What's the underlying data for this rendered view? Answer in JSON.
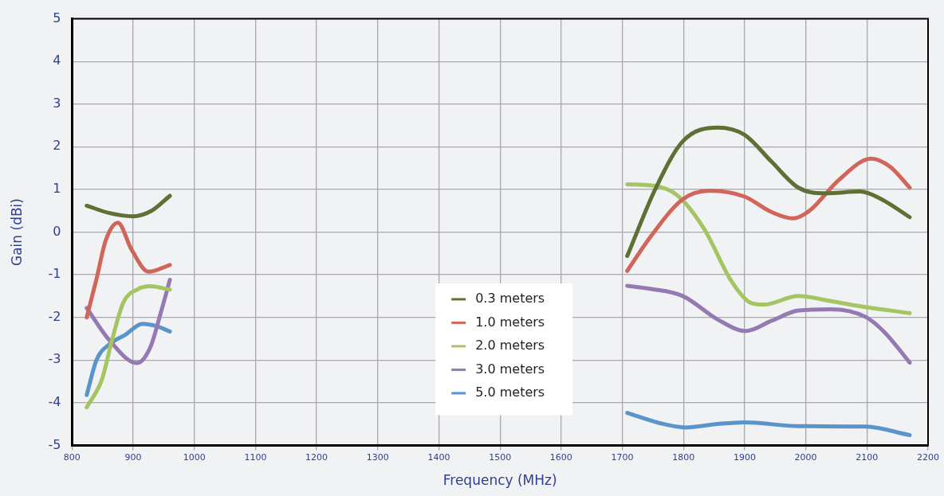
{
  "chart_data": {
    "type": "line",
    "xlabel": "Frequency (MHz)",
    "ylabel": "Gain (dBi)",
    "xlim": [
      800,
      2200
    ],
    "xticks": [
      800,
      900,
      1000,
      1100,
      1200,
      1300,
      1400,
      1500,
      1600,
      1700,
      1800,
      1900,
      2000,
      2100,
      2200
    ],
    "ylim": [
      -5,
      5
    ],
    "yticks": [
      -5,
      -4,
      -3,
      -2,
      -1,
      0,
      1,
      2,
      3,
      4,
      5
    ],
    "grid": true,
    "legend": "bottom",
    "marker": "none",
    "line_style": "solid",
    "series": [
      {
        "name": "0.3 meters",
        "color": "#5f7035",
        "x": [
          824,
          860,
          900,
          930,
          960,
          1300,
          1708,
          1755,
          1799,
          1856,
          1900,
          1944,
          1988,
          2032,
          2089,
          2120,
          2170
        ],
        "values": [
          0.62,
          0.45,
          0.37,
          0.5,
          0.85,
          null,
          -0.56,
          1.04,
          2.13,
          2.45,
          2.28,
          1.65,
          1.04,
          0.91,
          0.95,
          0.8,
          0.35
        ]
      },
      {
        "name": "1.0 meters",
        "color": "#d0655c",
        "x": [
          824,
          840,
          855,
          875,
          897,
          925,
          960,
          1300,
          1708,
          1746,
          1799,
          1843,
          1900,
          1944,
          1979,
          2006,
          2054,
          2107,
          2138,
          2170
        ],
        "values": [
          -2.0,
          -1.1,
          -0.2,
          0.22,
          -0.4,
          -0.93,
          -0.77,
          null,
          -0.91,
          -0.11,
          0.77,
          0.97,
          0.83,
          0.47,
          0.32,
          0.5,
          1.22,
          1.72,
          1.53,
          1.04
        ]
      },
      {
        "name": "2.0 meters",
        "color": "#a5c462",
        "x": [
          824,
          849,
          866,
          884,
          906,
          928,
          960,
          1300,
          1708,
          1750,
          1790,
          1834,
          1878,
          1909,
          1931,
          1988,
          2041,
          2098,
          2170
        ],
        "values": [
          -4.11,
          -3.45,
          -2.5,
          -1.65,
          -1.35,
          -1.27,
          -1.35,
          null,
          1.12,
          1.09,
          0.86,
          0.07,
          -1.14,
          -1.65,
          -1.7,
          -1.5,
          -1.62,
          -1.76,
          -1.9
        ]
      },
      {
        "name": "3.0 meters",
        "color": "#9479b2",
        "x": [
          824,
          862,
          906,
          928,
          945,
          960,
          1300,
          1708,
          1746,
          1799,
          1856,
          1902,
          1944,
          1988,
          2041,
          2098,
          2129,
          2170
        ],
        "values": [
          -1.78,
          -2.55,
          -3.07,
          -2.7,
          -1.9,
          -1.12,
          null,
          -1.26,
          -1.33,
          -1.5,
          -2.05,
          -2.32,
          -2.08,
          -1.84,
          -1.81,
          -1.99,
          -2.35,
          -3.06
        ]
      },
      {
        "name": "5.0 meters",
        "color": "#5b93cb",
        "x": [
          824,
          840,
          862,
          888,
          915,
          937,
          960,
          1300,
          1708,
          1759,
          1803,
          1856,
          1900,
          1988,
          2098,
          2170
        ],
        "values": [
          -3.82,
          -3.0,
          -2.62,
          -2.4,
          -2.15,
          -2.2,
          -2.33,
          null,
          -4.24,
          -4.47,
          -4.58,
          -4.5,
          -4.46,
          -4.55,
          -4.56,
          -4.76
        ]
      }
    ]
  }
}
